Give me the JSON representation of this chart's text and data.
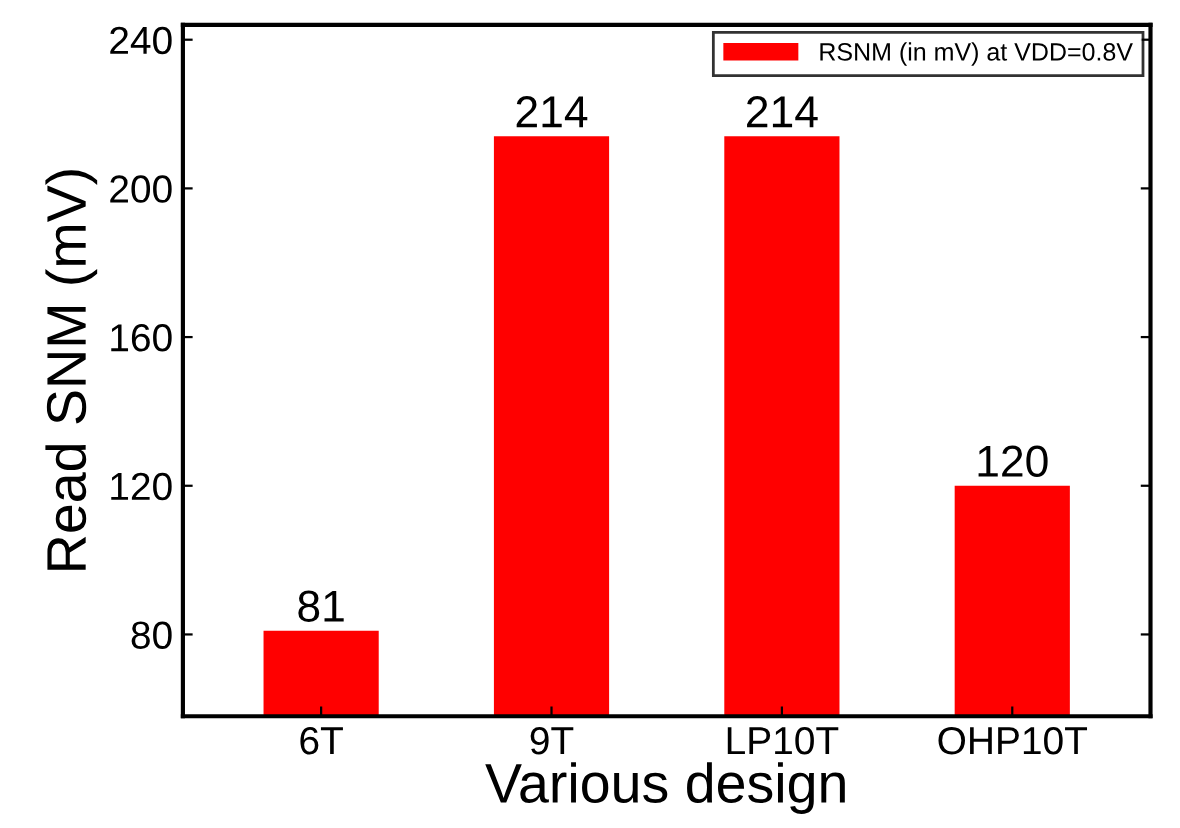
{
  "chart_data": {
    "type": "bar",
    "xlabel": "Various design",
    "ylabel": "Read SNM (mV)",
    "categories": [
      "6T",
      "9T",
      "LP10T",
      "OHP10T"
    ],
    "series": [
      {
        "name": "RSNM (in mV) at VDD=0.8V",
        "color": "#ff0000",
        "values": [
          81,
          214,
          214,
          120
        ]
      }
    ],
    "ylim": [
      58,
      244
    ],
    "yticks": [
      80,
      120,
      160,
      200,
      240
    ],
    "data_labels": true,
    "legend": "top right"
  }
}
